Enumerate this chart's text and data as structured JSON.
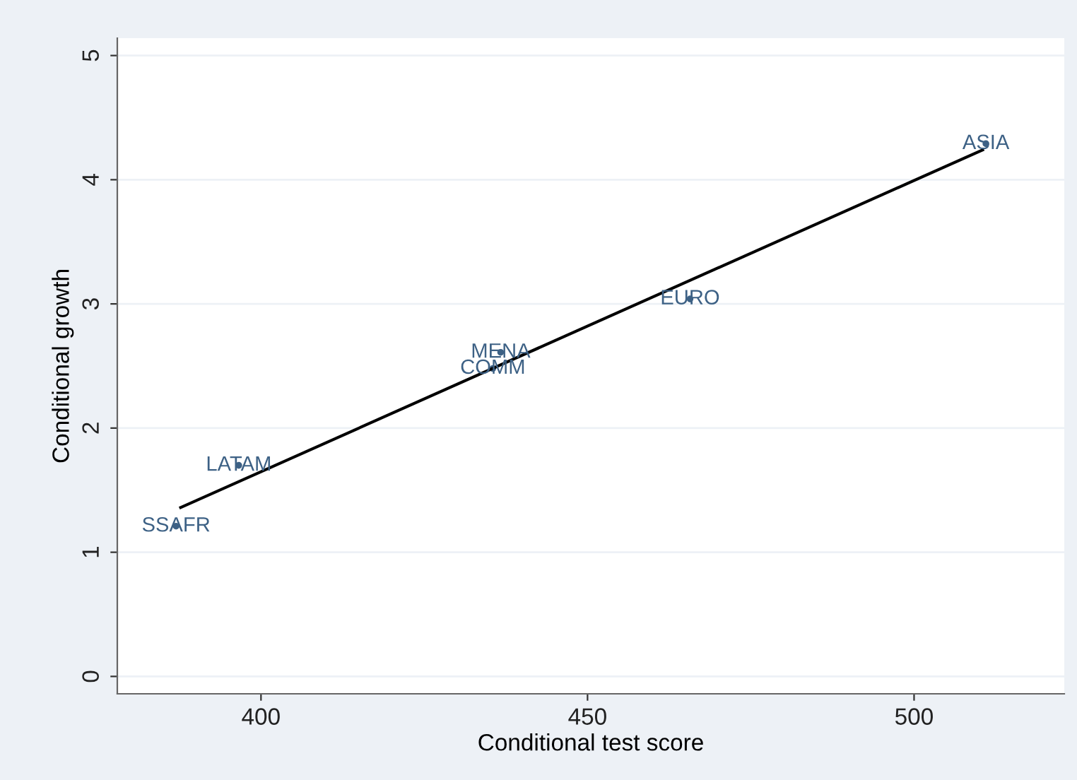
{
  "chart_data": {
    "type": "scatter",
    "xlabel": "Conditional test score",
    "ylabel": "Conditional growth",
    "xlim": [
      378,
      523
    ],
    "xticks": [
      400,
      450,
      500
    ],
    "ylim": [
      -0.14,
      5.14
    ],
    "yticks": [
      0,
      1,
      2,
      3,
      4,
      5
    ],
    "grid": "y",
    "series": [
      {
        "color": "#3d6185",
        "marker": "circle",
        "x": [
          387,
          396.6,
          436.7,
          435.5,
          465.7,
          511
        ],
        "values": [
          1.21,
          1.7,
          2.61,
          2.48,
          3.04,
          4.29
        ],
        "value_labels": [
          "SSAFR",
          "LATAM",
          "MENA",
          "COMM",
          "EURO",
          "ASIA"
        ]
      },
      {
        "type": "line",
        "color": "#000000",
        "x": [
          387.7,
          510.5
        ],
        "values": [
          1.36,
          4.24
        ],
        "line_style": "solid"
      }
    ]
  }
}
